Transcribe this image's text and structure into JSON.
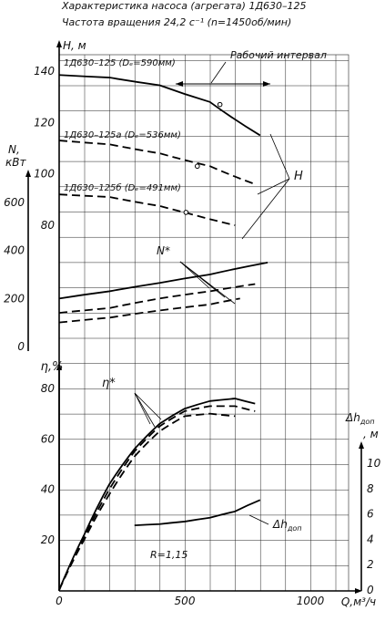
{
  "title_line1": "Характеристика насоса (агрегата) 1Д630–125",
  "title_line2": "Частота вращения 24,2 с⁻¹ (n=1450об/мин)",
  "chart_data": {
    "type": "line",
    "x": {
      "label": "Q,м³/ч",
      "ticks": [
        "0",
        "500",
        "1000"
      ],
      "lim": [
        0,
        1100
      ]
    },
    "axes": {
      "H": {
        "label": "H, м",
        "ticks": [
          "80",
          "100",
          "120",
          "140"
        ],
        "lim": [
          70,
          140
        ]
      },
      "N": {
        "label_line1": "N,",
        "label_line2": "кВт",
        "ticks": [
          "0",
          "200",
          "400",
          "600"
        ],
        "lim": [
          0,
          700
        ]
      },
      "eta": {
        "label": "η,%",
        "ticks": [
          "0",
          "20",
          "40",
          "60",
          "80"
        ],
        "lim": [
          0,
          85
        ]
      },
      "dh": {
        "label_line1": "Δh",
        "label_sub": "доп",
        "label_line2": ", м",
        "ticks": [
          "0",
          "2",
          "4",
          "6",
          "8",
          "10"
        ],
        "lim": [
          0,
          10.5
        ]
      }
    },
    "series": [
      {
        "name": "1Д630–125 (Dₑ=590мм)",
        "axis": "H",
        "style": "solid",
        "x": [
          0,
          200,
          400,
          600,
          800
        ],
        "y": [
          138.5,
          137.5,
          134.5,
          128,
          115
        ],
        "marker": [
          640,
          127
        ]
      },
      {
        "name": "1Д630–125а (Dₑ=536мм)",
        "axis": "H",
        "style": "dashed",
        "x": [
          0,
          200,
          400,
          600,
          780
        ],
        "y": [
          113,
          111.5,
          108,
          103,
          96
        ],
        "marker": [
          550,
          103
        ]
      },
      {
        "name": "1Д630–125б (Dₑ=491мм)",
        "axis": "H",
        "style": "dashed",
        "x": [
          0,
          200,
          400,
          500,
          700
        ],
        "y": [
          92,
          91,
          87.5,
          85,
          80
        ],
        "marker": [
          505,
          85
        ]
      },
      {
        "axis": "N",
        "style": "solid",
        "x": [
          0,
          200,
          400,
          600,
          830
        ],
        "y": [
          200,
          230,
          265,
          300,
          350
        ]
      },
      {
        "axis": "N",
        "style": "dashed",
        "x": [
          0,
          200,
          400,
          600,
          780
        ],
        "y": [
          140,
          160,
          200,
          230,
          260
        ]
      },
      {
        "axis": "N",
        "style": "dashed",
        "x": [
          0,
          200,
          400,
          600,
          720
        ],
        "y": [
          100,
          120,
          150,
          175,
          200
        ]
      },
      {
        "axis": "eta",
        "style": "solid",
        "x": [
          0,
          100,
          200,
          300,
          400,
          500,
          600,
          700,
          780
        ],
        "y": [
          0,
          22,
          42,
          56,
          66,
          72,
          75,
          76,
          74
        ]
      },
      {
        "axis": "eta",
        "style": "dashed",
        "x": [
          0,
          100,
          200,
          300,
          400,
          500,
          600,
          700,
          780
        ],
        "y": [
          0,
          21,
          40,
          55,
          65,
          71,
          73,
          73,
          71
        ]
      },
      {
        "axis": "eta",
        "style": "dashed",
        "x": [
          0,
          100,
          200,
          300,
          400,
          500,
          600,
          700
        ],
        "y": [
          0,
          20,
          38,
          53,
          63,
          69,
          70,
          69
        ]
      },
      {
        "axis": "dh",
        "style": "solid",
        "x": [
          300,
          400,
          500,
          600,
          700,
          800
        ],
        "y": [
          5.1,
          5.2,
          5.4,
          5.7,
          6.2,
          7.1
        ]
      }
    ],
    "annotations": [
      "Рабочий интервал",
      "H",
      "N*",
      "η*",
      "Δh",
      "доп",
      "R=1,15"
    ]
  }
}
